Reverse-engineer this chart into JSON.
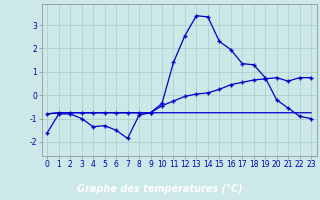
{
  "xlabel": "Graphe des températures (°C)",
  "background_color": "#cce8e8",
  "plot_bg_color": "#cce8e8",
  "xlabel_bg_color": "#2222aa",
  "xlabel_text_color": "#ffffff",
  "grid_color": "#aacccc",
  "line_color": "#0000cc",
  "x_hours": [
    0,
    1,
    2,
    3,
    4,
    5,
    6,
    7,
    8,
    9,
    10,
    11,
    12,
    13,
    14,
    15,
    16,
    17,
    18,
    19,
    20,
    21,
    22,
    23
  ],
  "line1_y": [
    -1.6,
    -0.8,
    -0.8,
    -1.0,
    -1.35,
    -1.3,
    -1.5,
    -1.85,
    -0.85,
    -0.75,
    -0.35,
    1.4,
    2.55,
    3.4,
    3.35,
    2.3,
    1.95,
    1.35,
    1.3,
    0.75,
    -0.2,
    -0.55,
    -0.9,
    -1.0
  ],
  "line2_y": [
    -0.8,
    -0.75,
    -0.75,
    -0.75,
    -0.75,
    -0.75,
    -0.75,
    -0.75,
    -0.75,
    -0.75,
    -0.45,
    -0.25,
    -0.05,
    0.05,
    0.1,
    0.25,
    0.45,
    0.55,
    0.65,
    0.7,
    0.75,
    0.6,
    0.75,
    0.75
  ],
  "line3_y": [
    -0.8,
    -0.75,
    -0.75,
    -0.75,
    -0.75,
    -0.75,
    -0.75,
    -0.75,
    -0.75,
    -0.75,
    -0.75,
    -0.75,
    -0.75,
    -0.75,
    -0.75,
    -0.75,
    -0.75,
    -0.75,
    -0.75,
    -0.75,
    -0.75,
    -0.75,
    -0.75,
    -0.75
  ],
  "ylim": [
    -2.6,
    3.9
  ],
  "yticks": [
    -2,
    -1,
    0,
    1,
    2,
    3
  ],
  "xlim": [
    -0.5,
    23.5
  ],
  "tick_fontsize": 5.5,
  "label_fontsize": 7.0
}
